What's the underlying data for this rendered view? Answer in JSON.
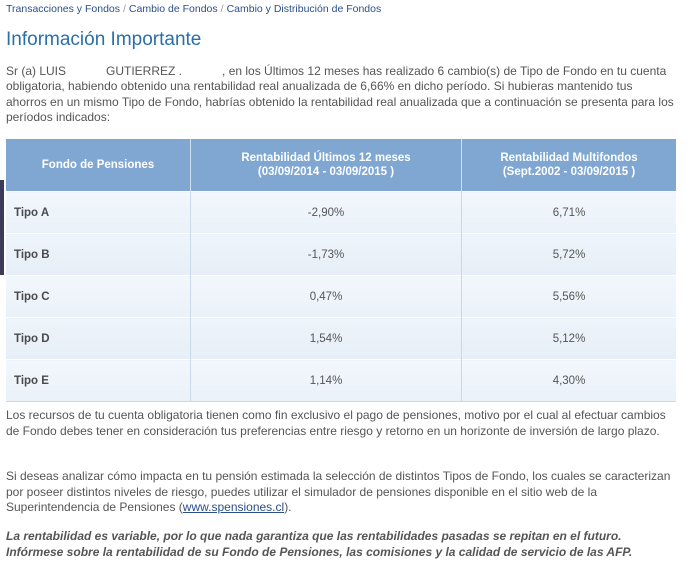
{
  "breadcrumb": {
    "items": [
      "Transacciones y Fondos",
      "Cambio de Fondos",
      "Cambio y Distribución de Fondos"
    ],
    "separator": "/"
  },
  "page_title": "Información Importante",
  "intro": {
    "salutation": "Sr (a) LUIS",
    "surname": "GUTIERREZ .",
    "text_after_name": ", en los Últimos 12 meses has realizado 6 cambio(s) de Tipo de Fondo en tu cuenta obligatoria, habiendo obtenido una rentabilidad real anualizada de 6,66% en dicho período. Si hubieras mantenido tus ahorros en un mismo Tipo de Fondo, habrías obtenido la rentabilidad real anualizada que a continuación se presenta para los períodos indicados:"
  },
  "table": {
    "headers": {
      "fund": "Fondo de Pensiones",
      "last12_line1": "Rentabilidad Últimos 12 meses",
      "last12_line2": "(03/09/2014 - 03/09/2015 )",
      "multi_line1": "Rentabilidad Multifondos",
      "multi_line2": "(Sept.2002 - 03/09/2015 )"
    },
    "rows": [
      {
        "fund": "Tipo A",
        "last12": "-2,90%",
        "multi": "6,71%"
      },
      {
        "fund": "Tipo B",
        "last12": "-1,73%",
        "multi": "5,72%"
      },
      {
        "fund": "Tipo C",
        "last12": "0,47%",
        "multi": "5,56%"
      },
      {
        "fund": "Tipo D",
        "last12": "1,54%",
        "multi": "5,12%"
      },
      {
        "fund": "Tipo E",
        "last12": "1,14%",
        "multi": "4,30%"
      }
    ]
  },
  "paragraph1": "Los recursos de tu cuenta obligatoria tienen como fin exclusivo el pago de pensiones, motivo por el cual al efectuar cambios de Fondo debes tener en consideración tus preferencias entre riesgo y retorno en un horizonte de inversión de largo plazo.",
  "paragraph2": {
    "text_before_link": "Si deseas analizar cómo impacta en tu pensión estimada la selección de distintos Tipos de Fondo, los cuales se caracterizan por poseer distintos niveles de riesgo, puedes utilizar el simulador de pensiones disponible en el sitio web de la Superintendencia de Pensiones (",
    "link_text": "www.spensiones.cl",
    "text_after_link": ")."
  },
  "disclaimer": {
    "line1": "La rentabilidad es variable, por lo que nada garantiza que las rentabilidades pasadas se repitan en el futuro.",
    "line2": "Infórmese sobre la rentabilidad de su Fondo de Pensiones, las comisiones y la calidad de servicio de las AFP."
  },
  "colors": {
    "title": "#2a6fa8",
    "link": "#2c4f8a",
    "table_header": "#7fa7d2",
    "table_row": "#eef4fa"
  }
}
